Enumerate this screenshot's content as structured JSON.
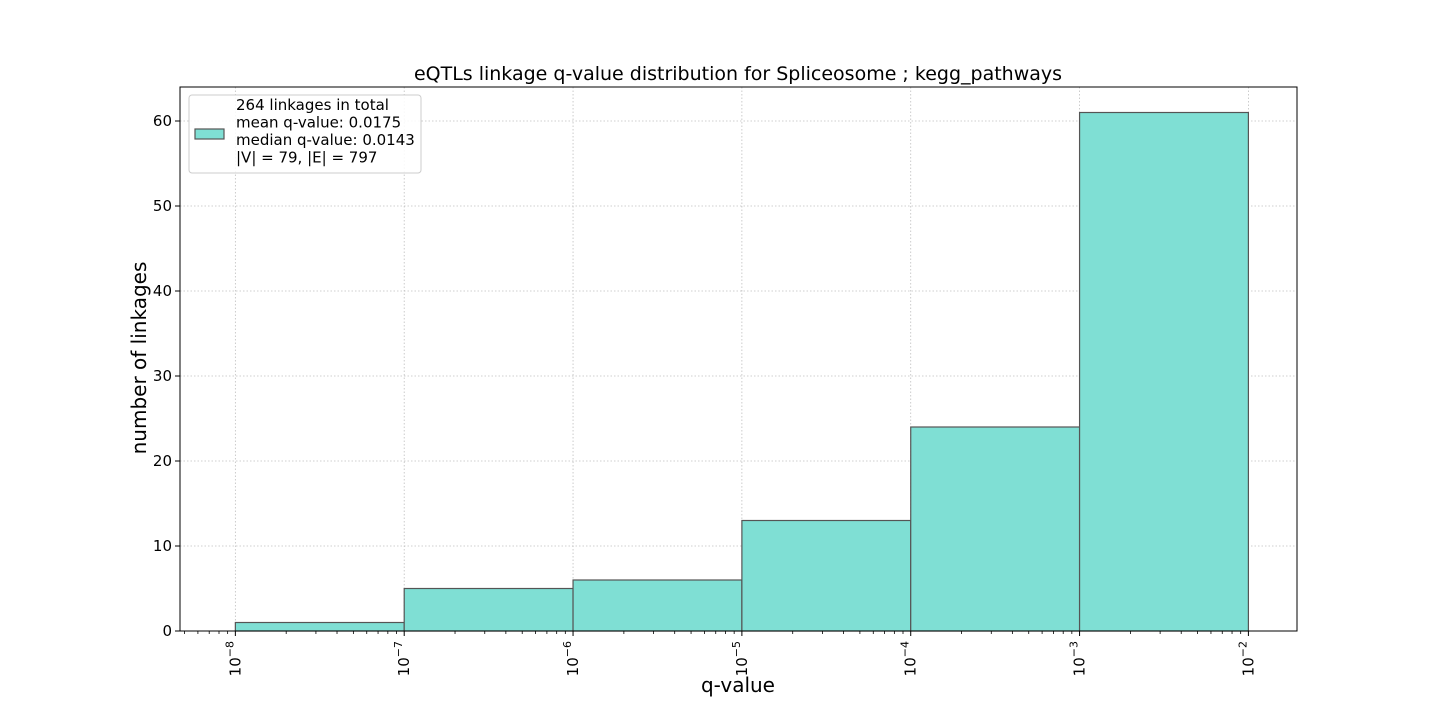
{
  "chart_data": {
    "type": "bar",
    "title": "eQTLs linkage q-value distribution for Spliceosome ; kegg_pathways",
    "xlabel": "q-value",
    "ylabel": "number of linkages",
    "x_scale": "log",
    "xlim": [
      4.7e-09,
      0.0194
    ],
    "ylim": [
      0,
      64
    ],
    "grid": true,
    "legend_placement": "top-left",
    "bar_color": "#7fdfd4",
    "edge_color": "#555555",
    "bins": [
      {
        "from": 1e-08,
        "to": 1e-07,
        "count": 1
      },
      {
        "from": 1e-07,
        "to": 1e-06,
        "count": 5
      },
      {
        "from": 1e-06,
        "to": 1e-05,
        "count": 6
      },
      {
        "from": 1e-05,
        "to": 0.0001,
        "count": 13
      },
      {
        "from": 0.0001,
        "to": 0.001,
        "count": 24
      },
      {
        "from": 0.001,
        "to": 0.01,
        "count": 61
      }
    ],
    "y_ticks": [
      0,
      10,
      20,
      30,
      40,
      50,
      60
    ],
    "x_ticks": [
      {
        "value": 1e-08,
        "base": "10",
        "exp": "−8"
      },
      {
        "value": 1e-07,
        "base": "10",
        "exp": "−7"
      },
      {
        "value": 1e-06,
        "base": "10",
        "exp": "−6"
      },
      {
        "value": 1e-05,
        "base": "10",
        "exp": "−5"
      },
      {
        "value": 0.0001,
        "base": "10",
        "exp": "−4"
      },
      {
        "value": 0.001,
        "base": "10",
        "exp": "−3"
      },
      {
        "value": 0.01,
        "base": "10",
        "exp": "−2"
      }
    ],
    "legend": {
      "lines": [
        "264 linkages in total",
        "mean q-value: 0.0175",
        "median q-value: 0.0143",
        "|V| = 79, |E| = 797"
      ]
    }
  }
}
